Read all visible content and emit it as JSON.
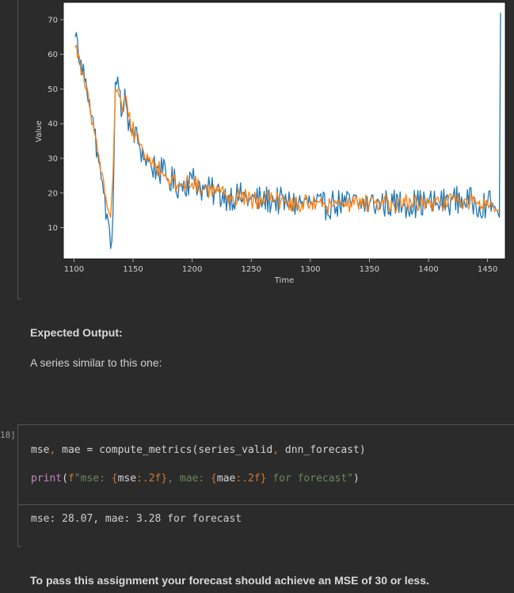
{
  "chart_data": {
    "type": "line",
    "xlabel": "Time",
    "ylabel": "Value",
    "xlim": [
      1091,
      1465
    ],
    "ylim": [
      1,
      75
    ],
    "x_ticks": [
      1100,
      1150,
      1200,
      1250,
      1300,
      1350,
      1400,
      1450
    ],
    "y_ticks": [
      10,
      20,
      30,
      40,
      50,
      60,
      70
    ],
    "series": [
      {
        "color": "#1f77b4",
        "x": [
          1101,
          1103,
          1105,
          1110,
          1113,
          1117,
          1120,
          1123,
          1125,
          1128,
          1130,
          1131,
          1132,
          1133,
          1135,
          1138,
          1140,
          1143,
          1146,
          1150,
          1155,
          1160,
          1165,
          1170,
          1175,
          1180,
          1190,
          1200,
          1210,
          1220,
          1230,
          1240,
          1250,
          1260,
          1270,
          1280,
          1290,
          1300,
          1310,
          1320,
          1330,
          1340,
          1350,
          1360,
          1370,
          1380,
          1390,
          1400,
          1410,
          1420,
          1430,
          1440,
          1450,
          1455,
          1458,
          1460,
          1461
        ],
        "y": [
          65,
          64,
          57,
          53,
          47,
          38,
          32,
          24,
          20,
          14,
          10,
          4,
          6,
          14,
          52,
          50,
          42,
          50,
          38,
          38,
          34,
          30,
          28,
          27,
          26,
          24,
          22,
          24,
          21,
          20,
          19,
          19,
          18,
          18,
          18,
          17,
          17,
          17,
          16,
          17,
          17,
          17,
          17,
          17,
          17,
          17,
          17,
          17,
          17,
          18,
          18,
          17,
          17,
          16,
          15,
          13,
          72
        ]
      },
      {
        "color": "#ff7f0e",
        "x": [
          1101,
          1104,
          1107,
          1110,
          1113,
          1117,
          1120,
          1123,
          1126,
          1129,
          1131,
          1133,
          1135,
          1138,
          1141,
          1144,
          1148,
          1152,
          1156,
          1160,
          1165,
          1170,
          1175,
          1180,
          1190,
          1200,
          1210,
          1220,
          1230,
          1240,
          1250,
          1260,
          1270,
          1280,
          1290,
          1300,
          1310,
          1320,
          1330,
          1340,
          1350,
          1360,
          1370,
          1380,
          1390,
          1400,
          1410,
          1420,
          1430,
          1440,
          1450,
          1455,
          1458,
          1461
        ],
        "y": [
          62,
          60,
          55,
          50,
          45,
          38,
          32,
          26,
          20,
          15,
          13,
          25,
          50,
          48,
          43,
          48,
          39,
          37,
          34,
          30,
          28,
          27,
          26,
          24,
          22,
          23,
          21,
          20,
          19,
          19,
          18,
          18,
          18,
          17,
          17,
          17,
          16,
          17,
          17,
          17,
          17,
          17,
          17,
          17,
          17,
          17,
          17,
          18,
          18,
          17,
          17,
          16,
          15,
          15
        ]
      }
    ]
  },
  "markdown": {
    "expected_heading": "Expected Output:",
    "expected_text": "A series similar to this one:",
    "final_text": "To pass this assignment your forecast should achieve an MSE of 30 or less."
  },
  "code_cell": {
    "prompt": "18]",
    "line1": {
      "lhs_a": "mse",
      "comma1": ",",
      "lhs_b": " mae",
      "eq": " = ",
      "fn": "compute_metrics",
      "open": "(",
      "arg1": "series_valid",
      "comma2": ",",
      "arg2": " dnn_forecast",
      "close": ")"
    },
    "line2": {
      "print": "print",
      "open": "(",
      "fpre": "f",
      "str1": "\"mse: ",
      "b1o": "{",
      "v1": "mse",
      "f1": ":.2f",
      "b1c": "}",
      "str2": ", mae: ",
      "b2o": "{",
      "v2": "mae",
      "f2": ":.2f",
      "b2c": "}",
      "str3": " for forecast\"",
      "close": ")"
    },
    "output": "mse: 28.07, mae: 3.28 for forecast"
  }
}
